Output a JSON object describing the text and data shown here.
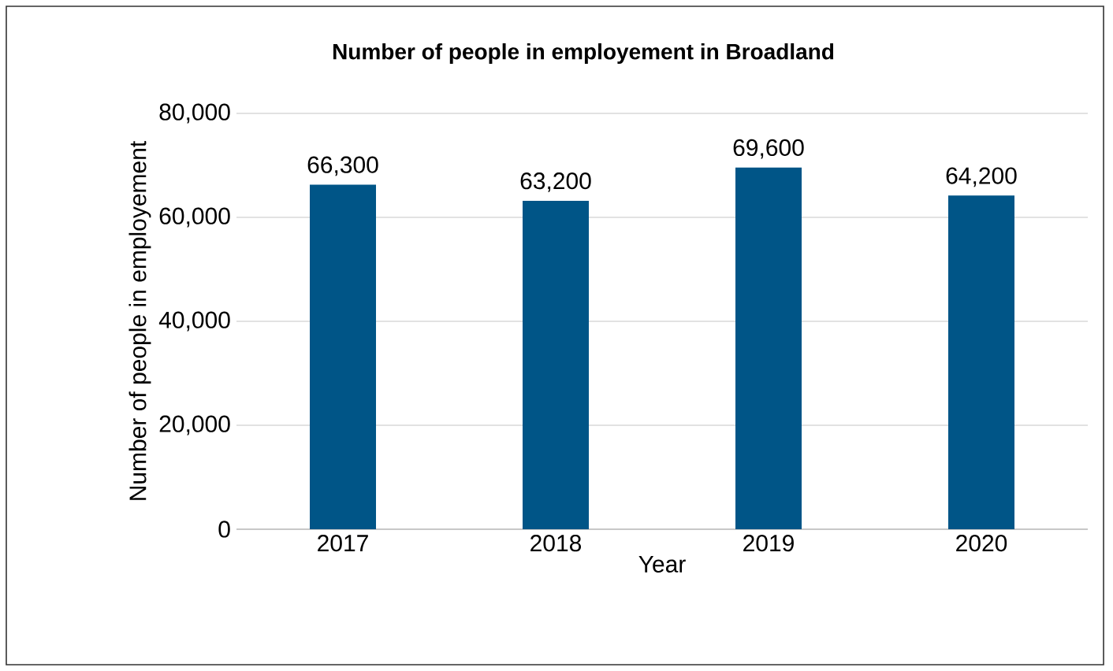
{
  "chart_data": {
    "type": "bar",
    "title": "Number of people in employement in Broadland",
    "xlabel": "Year",
    "ylabel": "Number of people in employement",
    "categories": [
      "2017",
      "2018",
      "2019",
      "2020"
    ],
    "values": [
      66300,
      63200,
      69600,
      64200
    ],
    "color": "#005587",
    "ylim": [
      0,
      80000
    ],
    "yticks": [
      0,
      {
        "value": 20000,
        "label": "20,000"
      },
      {
        "value": 40000,
        "label": "40,000"
      },
      {
        "value": 60000,
        "label": "60,000"
      },
      {
        "value": 80000,
        "label": "80,000"
      }
    ],
    "value_labels": [
      "66,300",
      "63,200",
      "69,600",
      "64,200"
    ],
    "grid": "y"
  }
}
